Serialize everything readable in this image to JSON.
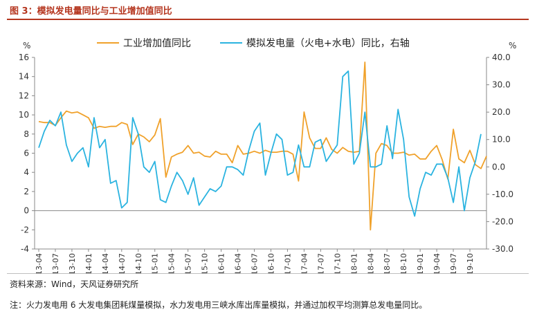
{
  "header": {
    "title": "图 3：模拟发电量同比与工业增加值同比"
  },
  "footer": {
    "source": "资料来源：Wind，天风证券研究所",
    "note": "注：火力发电用 6 大发电集团耗煤量模拟，水力发电用三峡水库出库量模拟，并通过加权平均测算总发电量同比。"
  },
  "chart_data": {
    "type": "line",
    "title": "",
    "y_left_unit": "%",
    "y_right_unit": "%",
    "ylim_left": [
      -4,
      16
    ],
    "ylim_right": [
      -30,
      40
    ],
    "yticks_left": [
      "-4",
      "-2",
      "0",
      "2",
      "4",
      "6",
      "8",
      "10",
      "12",
      "14",
      "16"
    ],
    "yticks_right": [
      "-30.0",
      "-20.0",
      "-10.0",
      "0.0",
      "10.0",
      "20.0",
      "30.0",
      "40.0"
    ],
    "x_tick_labels": [
      "2013-04",
      "2013-07",
      "2013-10",
      "2014-01",
      "2014-04",
      "2014-07",
      "2014-10",
      "2015-01",
      "2015-04",
      "2015-07",
      "2015-10",
      "2016-01",
      "2016-04",
      "2016-07",
      "2016-10",
      "2017-01",
      "2017-04",
      "2017-07",
      "2017-10",
      "2018-01",
      "2018-04",
      "2018-07",
      "2018-10",
      "2019-01",
      "2019-04",
      "2019-07",
      "2019-10"
    ],
    "colors": {
      "industrial": "#f0a12a",
      "power": "#2ab3e0"
    },
    "legend": [
      "工业增加值同比",
      "模拟发电量（火电+水电）同比，右轴"
    ],
    "series": [
      {
        "name": "工业增加值同比",
        "axis": "left",
        "values": [
          9.3,
          9.2,
          9.2,
          8.9,
          9.7,
          10.4,
          10.2,
          10.3,
          10.0,
          9.7,
          8.6,
          8.8,
          8.7,
          8.8,
          8.8,
          9.2,
          9.0,
          6.9,
          8.0,
          7.7,
          7.2,
          7.9,
          9.6,
          3.5,
          5.6,
          5.9,
          6.1,
          6.8,
          6.0,
          6.1,
          5.7,
          5.6,
          6.2,
          5.9,
          5.9,
          5.0,
          6.8,
          5.9,
          6.0,
          6.2,
          6.0,
          6.3,
          6.1,
          6.1,
          6.2,
          6.2,
          5.9,
          3.1,
          10.3,
          7.6,
          6.5,
          6.5,
          7.6,
          6.4,
          6.0,
          6.6,
          6.2,
          6.1,
          6.2,
          15.5,
          -2.0,
          6.0,
          7.0,
          6.8,
          6.0,
          6.0,
          6.1,
          5.8,
          5.9,
          5.4,
          5.4,
          6.2,
          6.8,
          5.3,
          3.3,
          8.5,
          5.4,
          5.0,
          6.3,
          4.8,
          4.4,
          5.7
        ]
      },
      {
        "name": "模拟发电量（火电+水电）同比，右轴",
        "axis": "right",
        "values": [
          7,
          13,
          17,
          15,
          20,
          8,
          2,
          5,
          7,
          0,
          18,
          7,
          10,
          -6,
          -5,
          -15,
          -13,
          18,
          12,
          0,
          -2,
          2,
          -12,
          -13,
          -7,
          -2,
          -5,
          -10,
          -4,
          -14,
          -11,
          -8,
          -9,
          -7,
          0,
          0,
          -1,
          -3,
          6,
          13,
          16,
          -3,
          5,
          12,
          10,
          -3,
          -2,
          8,
          0,
          0,
          9,
          10,
          2,
          5,
          8,
          33,
          35,
          1,
          5,
          20,
          0,
          0,
          1,
          15,
          3,
          21,
          10,
          -11,
          -18,
          -8,
          -2,
          -3,
          1,
          1,
          -4,
          -13,
          0,
          -16,
          -4,
          2,
          12
        ]
      }
    ]
  }
}
